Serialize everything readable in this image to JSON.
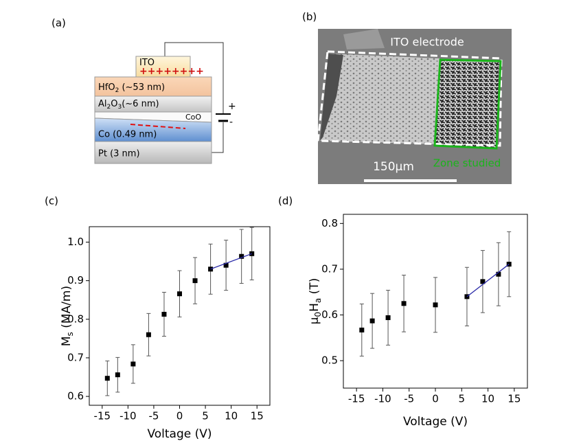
{
  "panels": [
    "(a)",
    "(b)",
    "(c)",
    "(d)"
  ],
  "diagram": {
    "layers": [
      [
        "ITO"
      ],
      [
        "HfO",
        "2",
        " (~53 nm)"
      ],
      [
        "Al",
        "2",
        "O",
        "3",
        "(~6 nm)"
      ],
      [
        "CoO"
      ],
      [
        "Co (0.49 nm)"
      ],
      [
        "Pt (3 nm)"
      ]
    ],
    "charges": "++++++++",
    "plus": "+",
    "minus": "-"
  },
  "image": {
    "electrode": "ITO electrode",
    "scale": "150μm",
    "zone": "Zone studied"
  },
  "chart_data": [
    {
      "type": "scatter",
      "xlabel": "Voltage (V)",
      "ylabel": [
        "M",
        "s",
        " (MA/m)"
      ],
      "x": [
        -14,
        -12,
        -9,
        -6,
        -3,
        0,
        3,
        6,
        9,
        12,
        14
      ],
      "series": [
        {
          "color": "#000000",
          "values": [
            0.647,
            0.656,
            0.684,
            0.76,
            0.813,
            0.866,
            0.9,
            0.93,
            0.94,
            0.963,
            0.97
          ],
          "errors": [
            0.045,
            0.045,
            0.05,
            0.055,
            0.057,
            0.06,
            0.06,
            0.065,
            0.065,
            0.07,
            0.068
          ]
        }
      ],
      "fit": {
        "x": [
          6,
          14
        ],
        "values": [
          0.93,
          0.97
        ],
        "color": "#2a2aa8"
      },
      "xlim": [
        -17.5,
        17.5
      ],
      "xticks": [
        -15,
        -10,
        -5,
        0,
        5,
        10,
        15
      ],
      "ylim": [
        0.577,
        1.04
      ],
      "yticks": [
        {
          "value": 0.6,
          "label": "0.6"
        },
        {
          "value": 0.7,
          "label": "0.7"
        },
        {
          "value": 0.8,
          "label": "0.8"
        },
        {
          "value": 0.9,
          "label": "0.9"
        },
        {
          "value": 1.0,
          "label": "1.0"
        }
      ]
    },
    {
      "type": "scatter",
      "xlabel": "Voltage (V)",
      "ylabel": [
        "μ",
        "0",
        "H",
        "a",
        " (T)"
      ],
      "x": [
        -14,
        -12,
        -9,
        -6,
        0,
        6,
        9,
        12,
        14
      ],
      "series": [
        {
          "color": "#000000",
          "values": [
            0.567,
            0.587,
            0.594,
            0.625,
            0.622,
            0.64,
            0.673,
            0.689,
            0.711
          ],
          "errors": [
            0.057,
            0.06,
            0.06,
            0.062,
            0.06,
            0.064,
            0.068,
            0.069,
            0.071
          ]
        }
      ],
      "fit": {
        "x": [
          6,
          14
        ],
        "values": [
          0.64,
          0.711
        ],
        "color": "#2a2aa8"
      },
      "xlim": [
        -17.5,
        17.5
      ],
      "xticks": [
        -15,
        -10,
        -5,
        0,
        5,
        10,
        15
      ],
      "ylim": [
        0.44,
        0.82
      ],
      "yticks": [
        {
          "value": 0.5,
          "label": "0.5"
        },
        {
          "value": 0.6,
          "label": "0.6"
        },
        {
          "value": 0.7,
          "label": "0.7"
        },
        {
          "value": 0.8,
          "label": "0.8"
        }
      ]
    }
  ]
}
